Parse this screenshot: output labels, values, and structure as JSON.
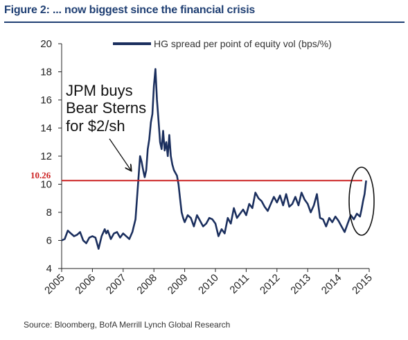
{
  "header": {
    "title": "Figure 2: ... now biggest since the financial crisis",
    "source": "Source: Bloomberg, BofA Merrill Lynch Global Research"
  },
  "chart_data": {
    "type": "line",
    "title": "Figure 2: ... now biggest since the financial crisis",
    "xlabel": "",
    "ylabel": "",
    "xlim": [
      2005,
      2015
    ],
    "ylim": [
      4,
      20
    ],
    "xticks": [
      "2005",
      "2006",
      "2007",
      "2008",
      "2009",
      "2010",
      "2011",
      "2012",
      "2013",
      "2014",
      "2015"
    ],
    "yticks": [
      "4",
      "6",
      "8",
      "10",
      "12",
      "14",
      "16",
      "18",
      "20"
    ],
    "grid": false,
    "legend_position": "top-right",
    "series": [
      {
        "name": "HG spread per point of equity vol (bps/%)",
        "color": "#1b2f5e",
        "x": [
          2005.0,
          2005.1,
          2005.2,
          2005.3,
          2005.4,
          2005.5,
          2005.6,
          2005.7,
          2005.8,
          2005.9,
          2006.0,
          2006.1,
          2006.2,
          2006.3,
          2006.4,
          2006.45,
          2006.5,
          2006.6,
          2006.7,
          2006.8,
          2006.9,
          2007.0,
          2007.1,
          2007.2,
          2007.3,
          2007.4,
          2007.5,
          2007.55,
          2007.6,
          2007.65,
          2007.7,
          2007.75,
          2007.8,
          2007.85,
          2007.9,
          2007.95,
          2008.0,
          2008.05,
          2008.1,
          2008.15,
          2008.2,
          2008.25,
          2008.3,
          2008.35,
          2008.4,
          2008.45,
          2008.5,
          2008.55,
          2008.6,
          2008.65,
          2008.7,
          2008.75,
          2008.8,
          2008.85,
          2008.9,
          2008.95,
          2009.0,
          2009.1,
          2009.2,
          2009.3,
          2009.4,
          2009.5,
          2009.6,
          2009.7,
          2009.8,
          2009.9,
          2010.0,
          2010.1,
          2010.2,
          2010.3,
          2010.4,
          2010.5,
          2010.6,
          2010.7,
          2010.8,
          2010.9,
          2011.0,
          2011.1,
          2011.2,
          2011.3,
          2011.4,
          2011.5,
          2011.6,
          2011.7,
          2011.8,
          2011.9,
          2012.0,
          2012.1,
          2012.2,
          2012.3,
          2012.4,
          2012.5,
          2012.6,
          2012.7,
          2012.8,
          2012.9,
          2013.0,
          2013.1,
          2013.2,
          2013.3,
          2013.4,
          2013.5,
          2013.6,
          2013.7,
          2013.8,
          2013.9,
          2014.0,
          2014.1,
          2014.2,
          2014.3,
          2014.4,
          2014.5,
          2014.6,
          2014.7,
          2014.75,
          2014.8,
          2014.85,
          2014.9
        ],
        "y": [
          6.0,
          6.1,
          6.7,
          6.5,
          6.3,
          6.4,
          6.6,
          6.0,
          5.8,
          6.2,
          6.3,
          6.2,
          5.4,
          6.3,
          6.8,
          6.5,
          6.7,
          6.1,
          6.5,
          6.6,
          6.2,
          6.5,
          6.3,
          6.1,
          6.6,
          7.5,
          10.5,
          12.0,
          11.6,
          11.0,
          10.5,
          11.0,
          12.5,
          13.2,
          14.4,
          15.0,
          17.0,
          18.2,
          16.0,
          14.5,
          13.0,
          12.5,
          13.8,
          12.4,
          13.0,
          12.0,
          13.5,
          12.0,
          11.4,
          11.0,
          10.8,
          10.6,
          10.0,
          9.0,
          8.0,
          7.6,
          7.3,
          7.8,
          7.6,
          7.0,
          7.8,
          7.4,
          7.0,
          7.2,
          7.6,
          7.5,
          7.2,
          6.3,
          6.8,
          6.5,
          7.6,
          7.2,
          8.3,
          7.6,
          7.9,
          8.2,
          7.8,
          8.6,
          8.3,
          9.4,
          9.0,
          8.8,
          8.4,
          8.1,
          8.6,
          9.1,
          8.7,
          9.2,
          8.5,
          9.3,
          8.4,
          8.6,
          9.1,
          8.5,
          9.4,
          8.9,
          8.6,
          8.0,
          8.5,
          9.3,
          7.6,
          7.5,
          7.0,
          7.6,
          7.3,
          7.7,
          7.4,
          7.0,
          6.6,
          7.2,
          7.8,
          7.5,
          7.9,
          7.7,
          8.2,
          8.8,
          9.3,
          10.26
        ]
      }
    ],
    "reference_line": {
      "y": 10.26,
      "label": "10.26",
      "color": "#cc2222"
    },
    "annotations": [
      {
        "text_lines": [
          "JPM buys",
          "Bear Sterns",
          "for $2/sh"
        ],
        "arrow_to": {
          "x": 2007.25,
          "y": 11.0
        }
      }
    ]
  }
}
